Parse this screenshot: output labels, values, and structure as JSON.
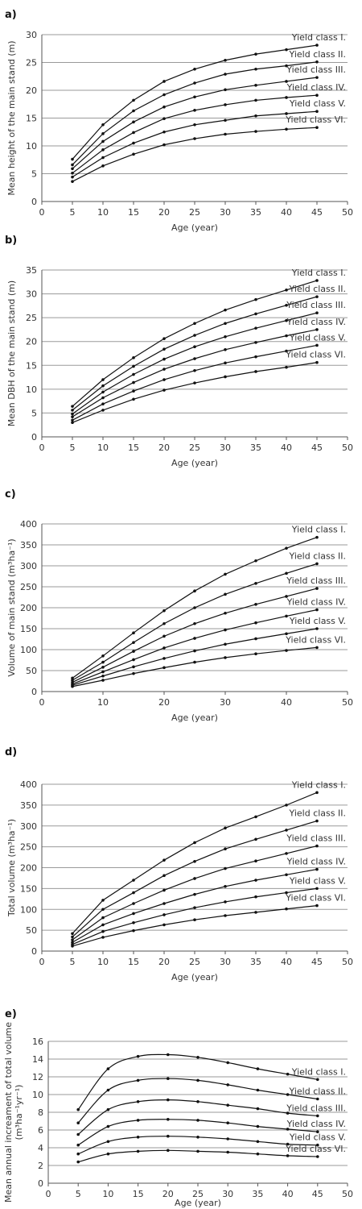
{
  "chart_data": [
    {
      "panel": "a)",
      "type": "line",
      "xlabel": "Age (year)",
      "ylabel": "Mean height of the main stand (m)",
      "xlim": [
        0,
        50
      ],
      "xticks": [
        0,
        5,
        10,
        15,
        20,
        25,
        30,
        35,
        40,
        45,
        50
      ],
      "ylim": [
        0,
        30
      ],
      "yticks": [
        0,
        5,
        10,
        15,
        20,
        25,
        30
      ],
      "grid": "horizontal",
      "x": [
        5,
        10,
        15,
        20,
        25,
        30,
        35,
        40,
        45
      ],
      "series": [
        {
          "name": "Yield class I.",
          "values": [
            7.6,
            13.8,
            18.2,
            21.6,
            23.8,
            25.4,
            26.5,
            27.3,
            28.1
          ]
        },
        {
          "name": "Yield class II.",
          "values": [
            6.6,
            12.2,
            16.3,
            19.2,
            21.3,
            22.9,
            23.8,
            24.4,
            25.1
          ]
        },
        {
          "name": "Yield class III.",
          "values": [
            5.9,
            10.8,
            14.3,
            17.0,
            18.8,
            20.1,
            20.9,
            21.6,
            22.3
          ]
        },
        {
          "name": "Yield class IV.",
          "values": [
            5.1,
            9.3,
            12.4,
            14.9,
            16.4,
            17.4,
            18.2,
            18.7,
            19.1
          ]
        },
        {
          "name": "Yield class V.",
          "values": [
            4.4,
            7.9,
            10.5,
            12.5,
            13.8,
            14.6,
            15.4,
            15.8,
            16.2
          ]
        },
        {
          "name": "Yield class VI.",
          "values": [
            3.6,
            6.4,
            8.5,
            10.2,
            11.3,
            12.1,
            12.6,
            13.0,
            13.3
          ]
        }
      ]
    },
    {
      "panel": "b)",
      "type": "line",
      "xlabel": "Age (year)",
      "ylabel": "Mean DBH of the main stand (m)",
      "xlim": [
        0,
        50
      ],
      "xticks": [
        0,
        5,
        10,
        15,
        20,
        25,
        30,
        35,
        40,
        45,
        50
      ],
      "ylim": [
        0,
        35
      ],
      "yticks": [
        0,
        5,
        10,
        15,
        20,
        25,
        30,
        35
      ],
      "grid": "horizontal",
      "x": [
        5,
        10,
        15,
        20,
        25,
        30,
        35,
        40,
        45
      ],
      "series": [
        {
          "name": "Yield class I.",
          "values": [
            6.4,
            12.0,
            16.6,
            20.6,
            23.8,
            26.6,
            28.8,
            30.8,
            32.8
          ]
        },
        {
          "name": "Yield class II.",
          "values": [
            5.6,
            10.7,
            14.8,
            18.4,
            21.3,
            23.8,
            25.8,
            27.6,
            29.4
          ]
        },
        {
          "name": "Yield class III.",
          "values": [
            4.8,
            9.4,
            13.1,
            16.3,
            18.9,
            21.0,
            22.8,
            24.4,
            26.0
          ]
        },
        {
          "name": "Yield class IV.",
          "values": [
            4.2,
            8.2,
            11.4,
            14.2,
            16.4,
            18.3,
            19.8,
            21.2,
            22.5
          ]
        },
        {
          "name": "Yield class V.",
          "values": [
            3.5,
            6.9,
            9.6,
            12.0,
            13.9,
            15.5,
            16.8,
            18.0,
            19.2
          ]
        },
        {
          "name": "Yield class VI.",
          "values": [
            3.0,
            5.6,
            7.9,
            9.8,
            11.3,
            12.6,
            13.7,
            14.6,
            15.6
          ]
        }
      ]
    },
    {
      "panel": "c)",
      "type": "line",
      "xlabel": "Age (year)",
      "ylabel": "Volume of main stand (m³ha⁻¹)",
      "xlim": [
        0,
        50
      ],
      "xticks": [
        0,
        10,
        20,
        30,
        40,
        50
      ],
      "ylim": [
        0,
        400
      ],
      "yticks": [
        0,
        50,
        100,
        150,
        200,
        250,
        300,
        350,
        400
      ],
      "grid": "horizontal",
      "x": [
        5,
        10,
        15,
        20,
        25,
        30,
        35,
        40,
        45
      ],
      "series": [
        {
          "name": "Yield class I.",
          "values": [
            32,
            85,
            140,
            193,
            240,
            280,
            312,
            342,
            368
          ]
        },
        {
          "name": "Yield class II.",
          "values": [
            27,
            70,
            117,
            162,
            200,
            232,
            258,
            282,
            305
          ]
        },
        {
          "name": "Yield class III.",
          "values": [
            22,
            58,
            96,
            132,
            162,
            187,
            208,
            227,
            246
          ]
        },
        {
          "name": "Yield class IV.",
          "values": [
            18,
            47,
            76,
            104,
            127,
            147,
            164,
            180,
            195
          ]
        },
        {
          "name": "Yield class V.",
          "values": [
            15,
            37,
            59,
            79,
            97,
            113,
            126,
            138,
            150
          ]
        },
        {
          "name": "Yield class VI.",
          "values": [
            12,
            27,
            43,
            57,
            70,
            81,
            90,
            98,
            105
          ]
        }
      ]
    },
    {
      "panel": "d)",
      "type": "line",
      "xlabel": "Age (year)",
      "ylabel": "Total volume (m³ha⁻¹)",
      "xlim": [
        0,
        50
      ],
      "xticks": [
        0,
        5,
        10,
        15,
        20,
        25,
        30,
        35,
        40,
        45,
        50
      ],
      "ylim": [
        0,
        400
      ],
      "yticks": [
        0,
        50,
        100,
        150,
        200,
        250,
        300,
        350,
        400
      ],
      "grid": "horizontal",
      "x": [
        5,
        10,
        15,
        20,
        25,
        30,
        35,
        40,
        45
      ],
      "series": [
        {
          "name": "Yield class I.",
          "values": [
            42,
            122,
            170,
            218,
            260,
            295,
            322,
            350,
            380
          ]
        },
        {
          "name": "Yield class II.",
          "values": [
            34,
            100,
            140,
            181,
            215,
            245,
            268,
            290,
            312
          ]
        },
        {
          "name": "Yield class III.",
          "values": [
            27,
            80,
            114,
            146,
            174,
            198,
            216,
            234,
            252
          ]
        },
        {
          "name": "Yield class IV.",
          "values": [
            21,
            63,
            90,
            114,
            136,
            155,
            170,
            183,
            196
          ]
        },
        {
          "name": "Yield class V.",
          "values": [
            16,
            47,
            68,
            87,
            104,
            118,
            130,
            140,
            150
          ]
        },
        {
          "name": "Yield class VI.",
          "values": [
            12,
            33,
            49,
            63,
            75,
            85,
            93,
            101,
            109
          ]
        }
      ]
    },
    {
      "panel": "e)",
      "type": "line",
      "smooth": true,
      "xlabel": "Age (year)",
      "ylabel": "Mean annual increament of total volume",
      "ylabel2": "(m³ha⁻¹yr⁻¹)",
      "xlim": [
        0,
        50
      ],
      "xticks": [
        0,
        5,
        10,
        15,
        20,
        25,
        30,
        35,
        40,
        45,
        50
      ],
      "ylim": [
        0,
        16
      ],
      "yticks": [
        0,
        2,
        4,
        6,
        8,
        10,
        12,
        14,
        16
      ],
      "grid": "horizontal",
      "x": [
        5,
        10,
        15,
        20,
        25,
        30,
        35,
        40,
        45
      ],
      "series": [
        {
          "name": "Yield class I.",
          "values": [
            8.3,
            12.9,
            14.3,
            14.5,
            14.2,
            13.6,
            12.9,
            12.3,
            11.7
          ]
        },
        {
          "name": "Yield class II.",
          "values": [
            6.8,
            10.5,
            11.6,
            11.8,
            11.6,
            11.1,
            10.5,
            10.0,
            9.5
          ]
        },
        {
          "name": "Yield class III.",
          "values": [
            5.5,
            8.3,
            9.2,
            9.4,
            9.2,
            8.8,
            8.4,
            7.9,
            7.6
          ]
        },
        {
          "name": "Yield class IV.",
          "values": [
            4.3,
            6.4,
            7.1,
            7.2,
            7.1,
            6.8,
            6.4,
            6.1,
            5.8
          ]
        },
        {
          "name": "Yield class V.",
          "values": [
            3.3,
            4.7,
            5.2,
            5.3,
            5.2,
            5.0,
            4.7,
            4.4,
            4.3
          ]
        },
        {
          "name": "Yield class VI.",
          "values": [
            2.4,
            3.3,
            3.6,
            3.7,
            3.6,
            3.5,
            3.3,
            3.1,
            3.0
          ]
        }
      ]
    }
  ]
}
